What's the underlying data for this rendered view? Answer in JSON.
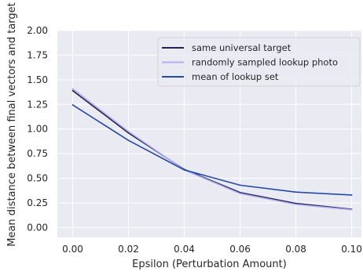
{
  "chart_data": {
    "type": "line",
    "xlabel": "Epsilon (Perturbation Amount)",
    "ylabel": "Mean distance between final vectors and target",
    "x": [
      0.0,
      0.02,
      0.04,
      0.06,
      0.08,
      0.1
    ],
    "x_ticks": [
      "0.00",
      "0.02",
      "0.04",
      "0.06",
      "0.08",
      "0.10"
    ],
    "y_ticks": [
      "0.00",
      "0.25",
      "0.50",
      "0.75",
      "1.00",
      "1.25",
      "1.50",
      "1.75",
      "2.00"
    ],
    "xlim": [
      -0.0055,
      0.1035
    ],
    "ylim": [
      -0.1,
      2.0
    ],
    "grid": true,
    "background": "#eaeaf2",
    "legend_position": "top-right",
    "series": [
      {
        "name": "same universal target",
        "color": "#22214f",
        "values": [
          1.39,
          0.96,
          0.59,
          0.355,
          0.245,
          0.185
        ]
      },
      {
        "name": "randomly sampled lookup photo",
        "color": "#aeaef2",
        "values": [
          1.41,
          0.975,
          0.585,
          0.345,
          0.235,
          0.18
        ]
      },
      {
        "name": "mean of lookup set",
        "color": "#234aa6",
        "values": [
          1.245,
          0.885,
          0.585,
          0.43,
          0.36,
          0.33
        ]
      }
    ]
  }
}
